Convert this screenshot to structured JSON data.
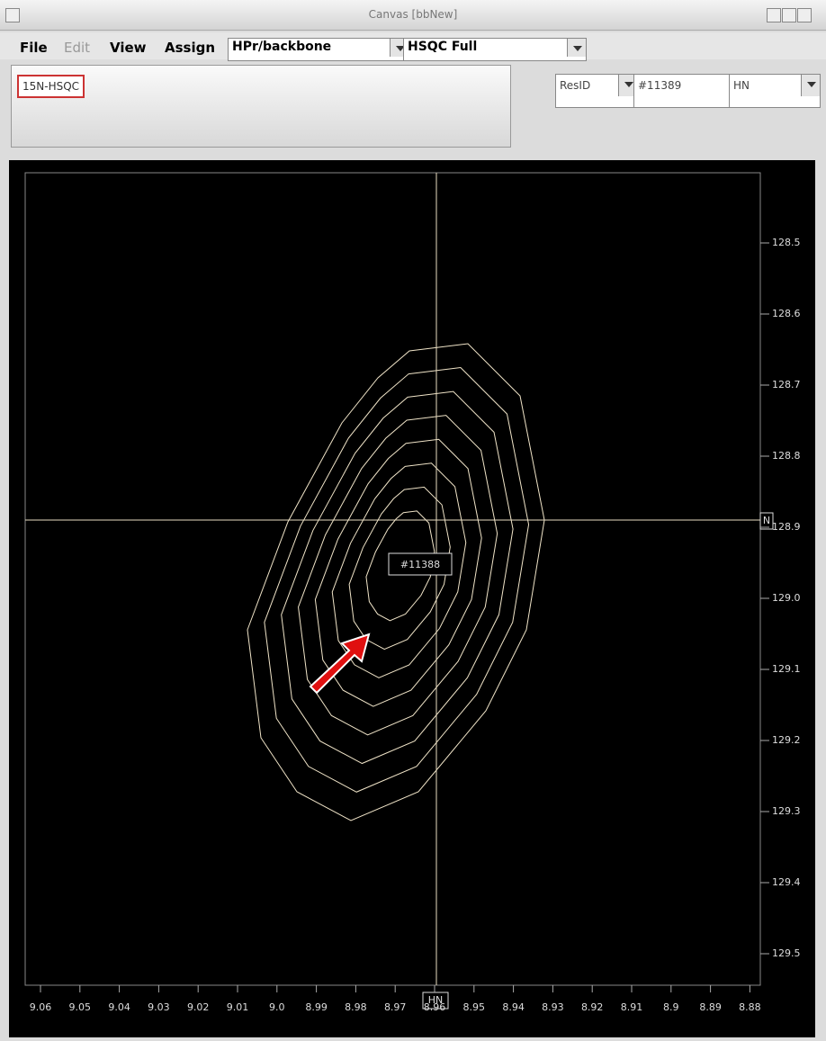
{
  "window": {
    "title": "Canvas [bbNew]"
  },
  "menu": {
    "items": [
      "File",
      "Edit",
      "View",
      "Assign"
    ],
    "project": "HPr/backbone",
    "view": "HSQC Full"
  },
  "panel": {
    "spectrum": "15N-HSQC",
    "mode": "ResID",
    "resonance": "#11389",
    "atom": "HN"
  },
  "plot": {
    "peak_label": "#11388",
    "y_axis_label": "N",
    "x_axis_label": "HN",
    "y_ticks": [
      "128.5",
      "128.6",
      "128.7",
      "128.8",
      "128.9",
      "129.0",
      "129.1",
      "129.2",
      "129.3",
      "129.4",
      "129.5"
    ],
    "x_ticks": [
      "9.06",
      "9.05",
      "9.04",
      "9.03",
      "9.02",
      "9.01",
      "9.0",
      "8.99",
      "8.98",
      "8.97",
      "8.96",
      "8.95",
      "8.94",
      "8.93",
      "8.92",
      "8.91",
      "8.9",
      "8.89",
      "8.88"
    ]
  }
}
